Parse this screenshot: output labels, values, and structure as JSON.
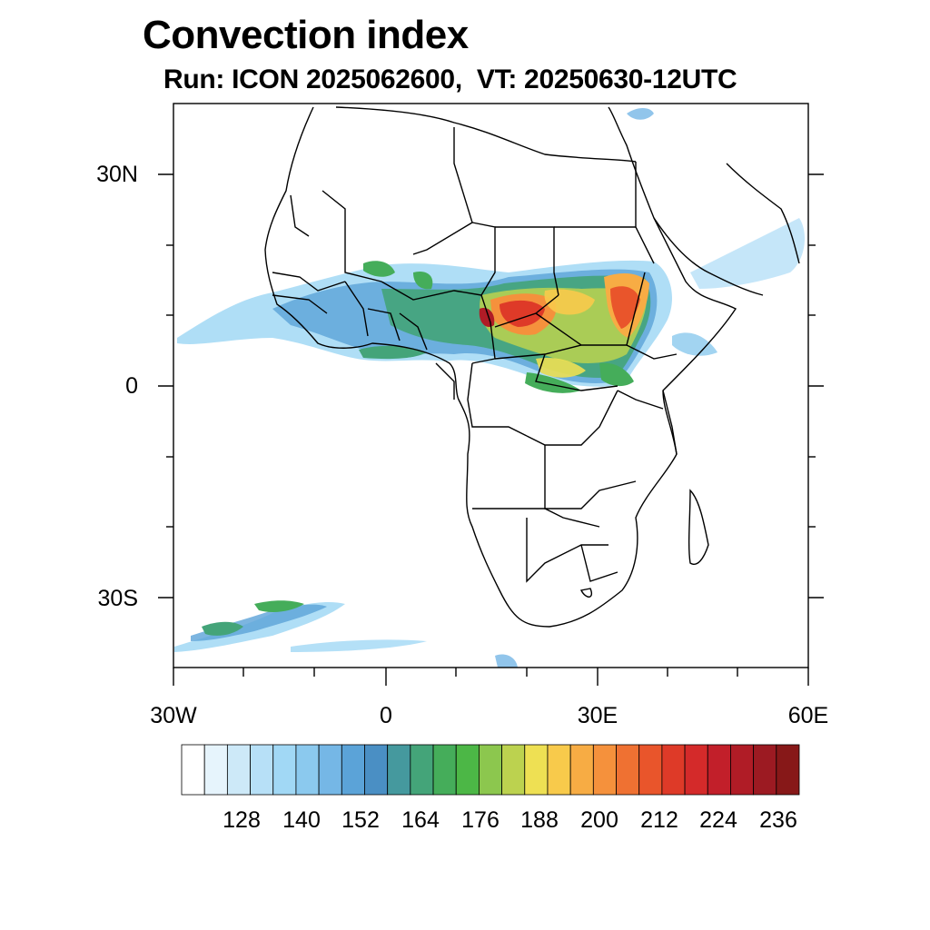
{
  "title": "Convection index",
  "subtitle": "Run: ICON 2025062600,  VT: 20250630-12UTC",
  "map": {
    "lat_labels": [
      "30N",
      "0",
      "30S"
    ],
    "lon_labels": [
      "30W",
      "0",
      "30E",
      "60E"
    ],
    "extent": {
      "lon_min": -30,
      "lon_max": 60,
      "lat_min": -40,
      "lat_max": 40
    }
  },
  "colorbar": {
    "labels": [
      "128",
      "140",
      "152",
      "164",
      "176",
      "188",
      "200",
      "212",
      "224",
      "236"
    ],
    "colors": [
      "#ffffff",
      "#e6f4fc",
      "#cde9f8",
      "#b7e0f7",
      "#a1d8f5",
      "#8bc9ee",
      "#75b7e6",
      "#5ba3d8",
      "#4a8fc4",
      "#45999e",
      "#44a479",
      "#45ad5a",
      "#4cb746",
      "#8cc74e",
      "#bcd24f",
      "#eee053",
      "#f8ca4b",
      "#f7ac44",
      "#f5913c",
      "#ef7132",
      "#e9552b",
      "#de3a28",
      "#d42a2a",
      "#c21f2a",
      "#b01c26",
      "#9c1a22",
      "#871818"
    ]
  },
  "icons": {
    "map": "africa-map"
  }
}
